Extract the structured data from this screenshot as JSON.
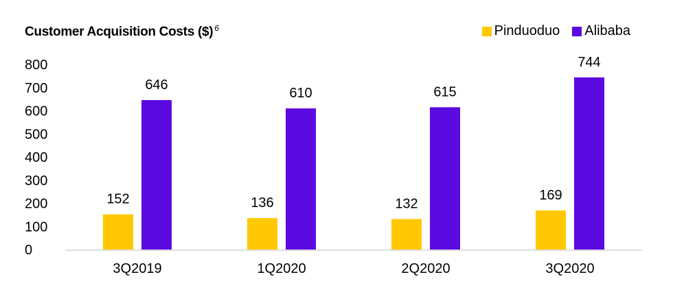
{
  "chart_data": {
    "type": "bar",
    "title": "Customer Acquisition Costs ($)",
    "title_footnote": "6",
    "categories": [
      "3Q2019",
      "1Q2020",
      "2Q2020",
      "3Q2020"
    ],
    "series": [
      {
        "name": "Pinduoduo",
        "values": [
          152,
          136,
          132,
          169
        ],
        "color": "#FFC800"
      },
      {
        "name": "Alibaba",
        "values": [
          646,
          610,
          615,
          744
        ],
        "color": "#5B0AE0"
      }
    ],
    "y_ticks": [
      "0",
      "100",
      "200",
      "300",
      "400",
      "500",
      "600",
      "700",
      "800"
    ],
    "ylim": [
      0,
      800
    ],
    "xlabel": "",
    "ylabel": "",
    "grid": false,
    "legend_position": "top-right"
  }
}
